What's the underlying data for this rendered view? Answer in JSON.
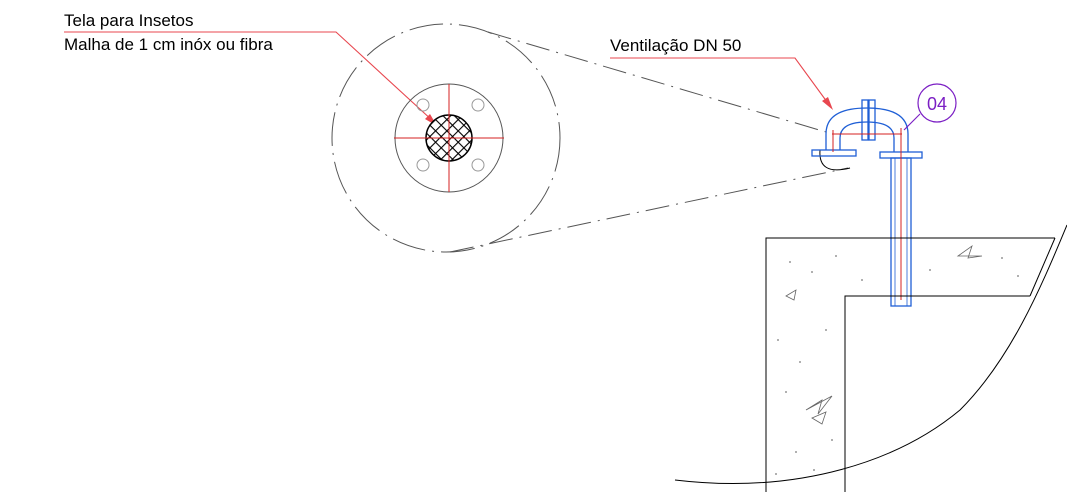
{
  "labels": {
    "screen_line1": "Tela para Insetos",
    "screen_line2": "Malha de 1 cm inóx ou fibra",
    "vent": "Ventilação DN 50",
    "tag": "04"
  },
  "colors": {
    "leader": "#e8474f",
    "pipe": "#1f5fd6",
    "center": "#d42020",
    "tag": "#7b1fc4",
    "line": "#000000",
    "detail": "#555555"
  }
}
